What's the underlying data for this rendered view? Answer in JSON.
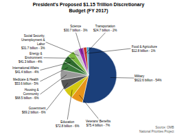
{
  "chart_data": {
    "type": "pie",
    "title": "President's Proposed $1.15 Trillion Discretionary\nBudget (FY 2017)",
    "categories": [
      "Military\n$622.6 billion - 54%",
      "Veterans' Benefits\n$75.4 billion - 7%",
      "Education\n$72.8 billion - 6%",
      "Government\n$69.2 billion - 6%",
      "Housing &\nCommunity\n$68.5 billion - 6%",
      "Medicare & Health\n$53.6 billion - 5%",
      "International Affairs\n$41.4 billion - 4%",
      "Energy &\nEnvironment\n$41.3 billion - 4%",
      "Social Security,\nUnemployment &\nLabor\n$31.7 billion - 3%",
      "Science\n$30.7 billion - 3%",
      "Transportation\n$24.7 billion - 2%",
      "Food & Agriculture\n$12.8 billion - 1%"
    ],
    "values": [
      54,
      7,
      6,
      6,
      6,
      5,
      4,
      4,
      3,
      3,
      2,
      1
    ],
    "colors": [
      "#1b3f7a",
      "#e8941a",
      "#d4c811",
      "#555555",
      "#999999",
      "#3a7a3a",
      "#2e6b2e",
      "#7cb842",
      "#c8c8c8",
      "#9b30b0",
      "#c0392b",
      "#2196c8"
    ],
    "annotations": [
      "Source: OMB\nNational Priorities Project"
    ]
  }
}
